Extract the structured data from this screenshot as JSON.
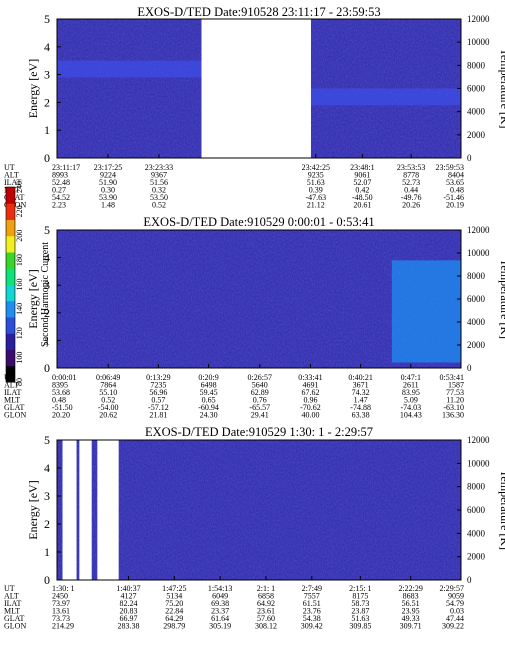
{
  "panels": [
    {
      "title": "EXOS-D/TED   Date:910528   23:11:17 - 23:59:53",
      "y_label": "Energy [eV]",
      "y2_label": "Temperature [K]",
      "y_ticks": [
        "0",
        "1",
        "2",
        "3",
        "4",
        "5"
      ],
      "y2_ticks": [
        "0",
        "2000",
        "4000",
        "6000",
        "8000",
        "10000",
        "12000"
      ],
      "row_labels": [
        "UT",
        "ALT",
        "ILAT",
        "MLT",
        "GLAT",
        "GLON"
      ],
      "columns": [
        {
          "values": [
            "23:11:17",
            "8993",
            "52.48",
            "0.27",
            "54.52",
            "2.23"
          ]
        },
        {
          "values": [
            "23:17:25",
            "9224",
            "51.90",
            "0.30",
            "53.90",
            "1.48"
          ]
        },
        {
          "values": [
            "23:23:33",
            "9367",
            "51.56",
            "0.32",
            "53.50",
            "0.52"
          ]
        },
        {
          "values": [
            "23:42:25",
            "9235",
            "51.63",
            "0.39",
            "-47.63",
            "21.12"
          ]
        },
        {
          "values": [
            "23:48:1",
            "9061",
            "52.07",
            "0.42",
            "-48.50",
            "20.61"
          ]
        },
        {
          "values": [
            "23:53:53",
            "8778",
            "52.73",
            "0.44",
            "-49.76",
            "20.26"
          ]
        },
        {
          "values": [
            "23:59:53",
            "8404",
            "53.65",
            "0.48",
            "-51.46",
            "20.19"
          ]
        }
      ]
    },
    {
      "title": "EXOS-D/TED   Date:910529   0:00:01 - 0:53:41",
      "y_label": "Energy [eV]",
      "y2_label": "Temperature [K]",
      "y_ticks": [
        "0",
        "1",
        "2",
        "3",
        "4",
        "5"
      ],
      "y2_ticks": [
        "0",
        "2000",
        "4000",
        "6000",
        "8000",
        "10000",
        "12000"
      ],
      "row_labels": [
        "UT",
        "ALT",
        "ILAT",
        "MLT",
        "GLAT",
        "GLON"
      ],
      "columns": [
        {
          "values": [
            "0:00:01",
            "8395",
            "53.68",
            "0.48",
            "-51.50",
            "20.20"
          ]
        },
        {
          "values": [
            "0:06:49",
            "7864",
            "55.10",
            "0.52",
            "-54.00",
            "20.62"
          ]
        },
        {
          "values": [
            "0:13:29",
            "7235",
            "56.96",
            "0.57",
            "-57.12",
            "21.81"
          ]
        },
        {
          "values": [
            "0:20:9",
            "6498",
            "59.45",
            "0.65",
            "-60.94",
            "24.30"
          ]
        },
        {
          "values": [
            "0:26:57",
            "5640",
            "62.89",
            "0.76",
            "-65.57",
            "29.41"
          ]
        },
        {
          "values": [
            "0:33:41",
            "4691",
            "67.62",
            "0.96",
            "-70.62",
            "40.00"
          ]
        },
        {
          "values": [
            "0:40:21",
            "3671",
            "74.32",
            "1.47",
            "-74.88",
            "63.38"
          ]
        },
        {
          "values": [
            "0:47:1",
            "2611",
            "83.95",
            "5.09",
            "-74.03",
            "104.43"
          ]
        },
        {
          "values": [
            "0:53:41",
            "1587",
            "77.53",
            "11.20",
            "-63.10",
            "136.30"
          ]
        }
      ]
    },
    {
      "title": "EXOS-D/TED   Date:910529   1:30: 1 - 2:29:57",
      "y_label": "Energy [eV]",
      "y2_label": "Temperature [K]",
      "y_ticks": [
        "0",
        "1",
        "2",
        "3",
        "4",
        "5"
      ],
      "y2_ticks": [
        "0",
        "2000",
        "4000",
        "6000",
        "8000",
        "10000",
        "12000"
      ],
      "row_labels": [
        "UT",
        "ALT",
        "ILAT",
        "MLT",
        "GLAT",
        "GLON"
      ],
      "columns": [
        {
          "values": [
            "1:30: 1",
            "2450",
            "73.97",
            "13.61",
            "73.73",
            "214.29"
          ]
        },
        {
          "values": [
            "1:40:37",
            "4127",
            "82.24",
            "20.83",
            "66.97",
            "283.38"
          ]
        },
        {
          "values": [
            "1:47:25",
            "5134",
            "75.20",
            "22.84",
            "64.29",
            "298.79"
          ]
        },
        {
          "values": [
            "1:54:13",
            "6049",
            "69.38",
            "23.37",
            "61.64",
            "305.19"
          ]
        },
        {
          "values": [
            "2:1: 1",
            "6858",
            "64.92",
            "23.61",
            "57.60",
            "308.12"
          ]
        },
        {
          "values": [
            "2:7:49",
            "7557",
            "61.51",
            "23.76",
            "54.38",
            "309.42"
          ]
        },
        {
          "values": [
            "2:15: 1",
            "8175",
            "58.73",
            "23.87",
            "51.63",
            "309.85"
          ]
        },
        {
          "values": [
            "2:22:29",
            "8683",
            "56.51",
            "23.95",
            "49.33",
            "309.71"
          ]
        },
        {
          "values": [
            "2:29:57",
            "9059",
            "54.79",
            "0.03",
            "47.44",
            "309.22"
          ]
        }
      ]
    }
  ],
  "colorbar": {
    "label": "Second Harmonic Current",
    "ticks": [
      "80",
      "100",
      "120",
      "140",
      "160",
      "180",
      "200",
      "220",
      "240"
    ],
    "colors": [
      "#000000",
      "#3a0a6e",
      "#2a1f9e",
      "#2b4fd8",
      "#1f8ef0",
      "#12d6d6",
      "#0fe27a",
      "#38d62a",
      "#f0f020",
      "#f0a010",
      "#e83010",
      "#c00000"
    ]
  },
  "chart_data": [
    {
      "type": "heatmap",
      "title": "EXOS-D/TED   Date:910528   23:11:17 - 23:59:53",
      "ylabel": "Energy [eV]",
      "ylim": [
        0,
        5
      ],
      "y2label": "Temperature [K]",
      "y2lim": [
        0,
        12000
      ],
      "x_ticks": [
        "23:11:17",
        "23:17:25",
        "23:23:33",
        "23:42:25",
        "23:48:1",
        "23:53:53",
        "23:59:53"
      ],
      "colorbar": {
        "label": "Second Harmonic Current",
        "range": [
          80,
          240
        ]
      },
      "data_gaps": [
        [
          "23:28:40",
          "23:41:50"
        ]
      ],
      "bands": [
        {
          "x_range": [
            "23:11:17",
            "23:28:40"
          ],
          "energy_range": [
            2.9,
            3.5
          ],
          "level": 150
        },
        {
          "x_range": [
            "23:41:50",
            "23:59:53"
          ],
          "energy_range": [
            1.9,
            2.5
          ],
          "level": 135
        }
      ]
    },
    {
      "type": "heatmap",
      "title": "EXOS-D/TED   Date:910529   0:00:01 - 0:53:41",
      "ylabel": "Energy [eV]",
      "ylim": [
        0,
        5
      ],
      "y2label": "Temperature [K]",
      "y2lim": [
        0,
        12000
      ],
      "x_ticks": [
        "0:00:01",
        "0:06:49",
        "0:13:29",
        "0:20:9",
        "0:26:57",
        "0:33:41",
        "0:40:21",
        "0:47:1",
        "0:53:41"
      ],
      "colorbar": {
        "label": "Second Harmonic Current",
        "range": [
          80,
          240
        ]
      },
      "bands": [
        {
          "x_range": [
            "0:44:30",
            "0:53:41"
          ],
          "energy_range": [
            0.2,
            3.9
          ],
          "level": 160
        }
      ]
    },
    {
      "type": "heatmap",
      "title": "EXOS-D/TED   Date:910529   1:30: 1 - 2:29:57",
      "ylabel": "Energy [eV]",
      "ylim": [
        0,
        5
      ],
      "y2label": "Temperature [K]",
      "y2lim": [
        0,
        12000
      ],
      "x_ticks": [
        "1:30: 1",
        "1:40:37",
        "1:47:25",
        "1:54:13",
        "2:1: 1",
        "2:7:49",
        "2:15: 1",
        "2:22:29",
        "2:29:57"
      ],
      "colorbar": {
        "label": "Second Harmonic Current",
        "range": [
          80,
          240
        ]
      },
      "data_gaps": [
        [
          "1:30:50",
          "1:32:55"
        ],
        [
          "1:33:20",
          "1:35:10"
        ],
        [
          "1:36:00",
          "1:39:10"
        ]
      ]
    }
  ]
}
